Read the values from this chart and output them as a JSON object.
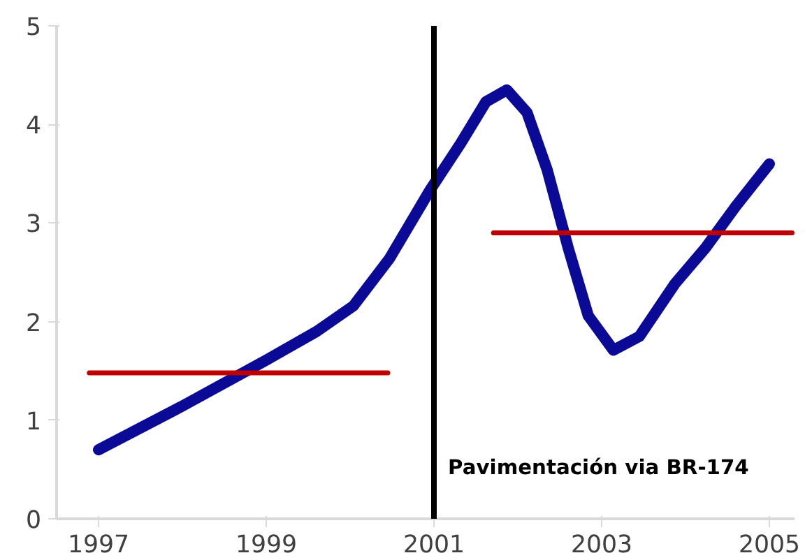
{
  "chart_data": {
    "type": "line",
    "xlim": [
      1996.5,
      2005.3
    ],
    "ylim": [
      0,
      5
    ],
    "xticks": [
      1997,
      1999,
      2001,
      2003,
      2005
    ],
    "yticks": [
      0,
      1,
      2,
      3,
      4,
      5
    ],
    "grid": false,
    "marker": "none",
    "line_style": "solid",
    "series": [
      {
        "color": "#0a0a96",
        "x": [
          1997,
          1997.97,
          1999.0,
          1999.6,
          2000.04,
          2000.47,
          2000.95,
          2001.32,
          2001.62,
          2001.87,
          2002.11,
          2002.35,
          2002.6,
          2002.84,
          2003.14,
          2003.45,
          2003.87,
          2004.24,
          2004.6,
          2005.0
        ],
        "values": [
          0.7,
          1.13,
          1.61,
          1.9,
          2.16,
          2.64,
          3.33,
          3.81,
          4.23,
          4.35,
          4.12,
          3.54,
          2.75,
          2.06,
          1.71,
          1.85,
          2.38,
          2.75,
          3.17,
          3.6
        ]
      },
      {
        "color": "#c00000",
        "x": [
          1996.89,
          2000.45
        ],
        "values": [
          1.48,
          1.48
        ]
      },
      {
        "color": "#c00000",
        "x": [
          2001.71,
          2005.27
        ],
        "values": [
          2.9,
          2.9
        ]
      }
    ],
    "ref_lines": [
      {
        "axis": "x",
        "value": 2001,
        "label": "Pavimentación via BR-174",
        "color": "#000000",
        "line_style": "solid"
      }
    ]
  }
}
